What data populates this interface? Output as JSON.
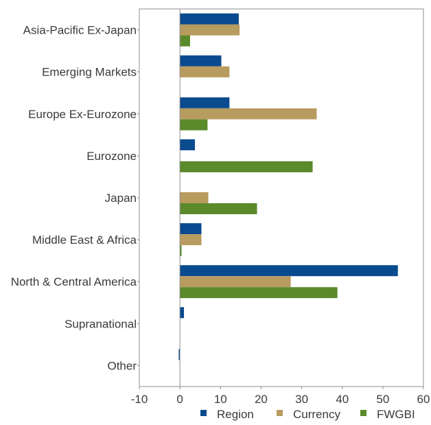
{
  "chart_data": {
    "type": "bar",
    "orientation": "horizontal",
    "title": "",
    "xlabel": "",
    "ylabel": "",
    "xlim": [
      -10,
      60
    ],
    "xticks": [
      "-10",
      "0",
      "10",
      "20",
      "30",
      "40",
      "50",
      "60"
    ],
    "grid": false,
    "legend_position": "bottom",
    "categories": [
      "Asia-Pacific Ex-Japan",
      "Emerging Markets",
      "Europe Ex-Eurozone",
      "Eurozone",
      "Japan",
      "Middle East & Africa",
      "North & Central America",
      "Supranational",
      "Other"
    ],
    "series": [
      {
        "name": "Region",
        "color": "#0a4a8f",
        "values": [
          14.5,
          10.2,
          12.2,
          3.7,
          0,
          5.3,
          53.7,
          1.0,
          -0.3
        ]
      },
      {
        "name": "Currency",
        "color": "#b89b5e",
        "values": [
          14.7,
          12.2,
          33.7,
          0,
          7.0,
          5.3,
          27.3,
          0,
          0
        ]
      },
      {
        "name": "FWGBI",
        "color": "#5a8a2a",
        "values": [
          2.5,
          0,
          6.8,
          32.7,
          19.0,
          0.4,
          38.8,
          0,
          0
        ]
      }
    ]
  }
}
